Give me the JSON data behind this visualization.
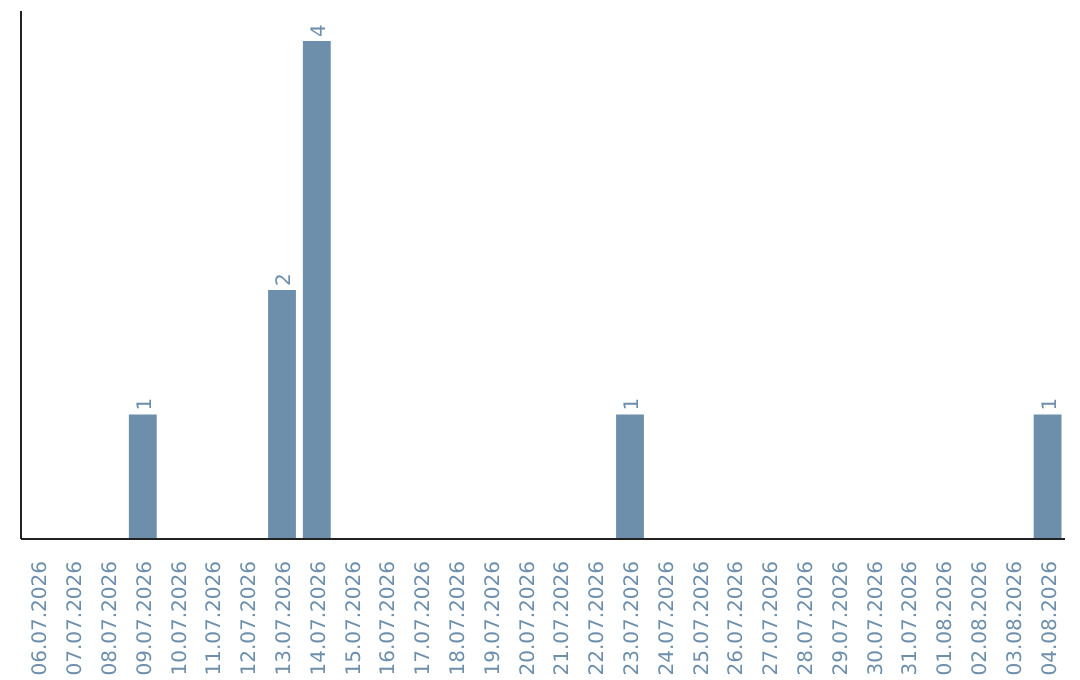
{
  "chart_data": {
    "type": "bar",
    "categories": [
      "06.07.2026",
      "07.07.2026",
      "08.07.2026",
      "09.07.2026",
      "10.07.2026",
      "11.07.2026",
      "12.07.2026",
      "13.07.2026",
      "14.07.2026",
      "15.07.2026",
      "16.07.2026",
      "17.07.2026",
      "18.07.2026",
      "19.07.2026",
      "20.07.2026",
      "21.07.2026",
      "22.07.2026",
      "23.07.2026",
      "24.07.2026",
      "25.07.2026",
      "26.07.2026",
      "27.07.2026",
      "28.07.2026",
      "29.07.2026",
      "30.07.2026",
      "31.07.2026",
      "01.08.2026",
      "02.08.2026",
      "03.08.2026",
      "04.08.2026"
    ],
    "values": [
      0,
      0,
      0,
      1,
      0,
      0,
      0,
      2,
      4,
      0,
      0,
      0,
      0,
      0,
      0,
      0,
      0,
      1,
      0,
      0,
      0,
      0,
      0,
      0,
      0,
      0,
      0,
      0,
      0,
      1
    ],
    "color": "#6d8fac",
    "value_labels": [
      null,
      null,
      null,
      "1",
      null,
      null,
      null,
      "2",
      "4",
      null,
      null,
      null,
      null,
      null,
      null,
      null,
      null,
      "1",
      null,
      null,
      null,
      null,
      null,
      null,
      null,
      null,
      null,
      null,
      null,
      "1"
    ]
  }
}
